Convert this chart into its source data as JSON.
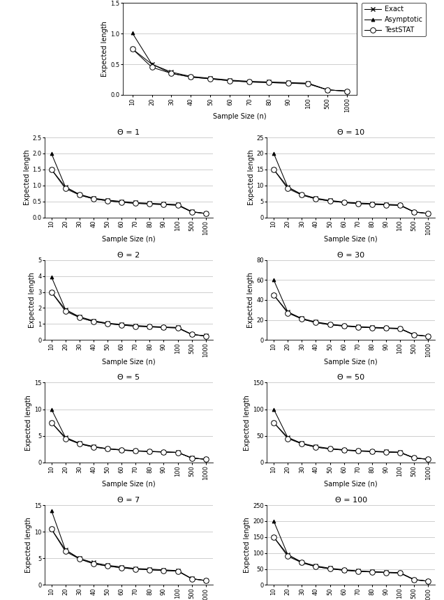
{
  "sample_sizes": [
    10,
    20,
    30,
    40,
    50,
    60,
    70,
    80,
    90,
    100,
    500,
    1000
  ],
  "x_tick_labels": [
    "10",
    "20",
    "30",
    "40",
    "50",
    "60",
    "70",
    "80",
    "90",
    "100",
    "500",
    "1000"
  ],
  "plots": {
    "0.5": {
      "exact": [
        0.75,
        0.5,
        0.37,
        0.3,
        0.27,
        0.24,
        0.22,
        0.21,
        0.2,
        0.19,
        0.08,
        0.06
      ],
      "asymptotic": [
        1.01,
        0.5,
        0.35,
        0.29,
        0.26,
        0.23,
        0.21,
        0.2,
        0.19,
        0.18,
        0.08,
        0.06
      ],
      "teststat": [
        0.75,
        0.45,
        0.35,
        0.29,
        0.26,
        0.23,
        0.21,
        0.2,
        0.19,
        0.18,
        0.08,
        0.06
      ],
      "ylim": [
        0,
        1.5
      ],
      "yticks": [
        0,
        0.5,
        1.0,
        1.5
      ]
    },
    "1": {
      "exact": [
        1.5,
        0.95,
        0.72,
        0.6,
        0.54,
        0.5,
        0.46,
        0.44,
        0.42,
        0.4,
        0.18,
        0.12
      ],
      "asymptotic": [
        2.0,
        0.95,
        0.7,
        0.58,
        0.52,
        0.47,
        0.44,
        0.42,
        0.4,
        0.38,
        0.17,
        0.12
      ],
      "teststat": [
        1.5,
        0.9,
        0.7,
        0.58,
        0.52,
        0.47,
        0.44,
        0.42,
        0.4,
        0.38,
        0.17,
        0.12
      ],
      "ylim": [
        0,
        2.5
      ],
      "yticks": [
        0,
        0.5,
        1.0,
        1.5,
        2.0,
        2.5
      ]
    },
    "2": {
      "exact": [
        3.0,
        1.9,
        1.45,
        1.2,
        1.05,
        0.97,
        0.9,
        0.85,
        0.81,
        0.78,
        0.35,
        0.25
      ],
      "asymptotic": [
        3.95,
        1.9,
        1.4,
        1.15,
        1.02,
        0.93,
        0.86,
        0.82,
        0.78,
        0.75,
        0.34,
        0.24
      ],
      "teststat": [
        3.0,
        1.8,
        1.4,
        1.15,
        1.02,
        0.93,
        0.86,
        0.82,
        0.78,
        0.75,
        0.34,
        0.24
      ],
      "ylim": [
        0,
        5
      ],
      "yticks": [
        0,
        1,
        2,
        3,
        4,
        5
      ]
    },
    "5": {
      "exact": [
        7.5,
        4.7,
        3.6,
        3.0,
        2.6,
        2.4,
        2.2,
        2.1,
        2.0,
        1.9,
        0.85,
        0.6
      ],
      "asymptotic": [
        10.0,
        4.7,
        3.5,
        2.9,
        2.55,
        2.32,
        2.15,
        2.05,
        1.95,
        1.87,
        0.83,
        0.59
      ],
      "teststat": [
        7.5,
        4.5,
        3.5,
        2.9,
        2.55,
        2.32,
        2.15,
        2.05,
        1.95,
        1.87,
        0.83,
        0.59
      ],
      "ylim": [
        0,
        15
      ],
      "yticks": [
        0,
        5,
        10,
        15
      ]
    },
    "7": {
      "exact": [
        10.5,
        6.6,
        5.0,
        4.2,
        3.7,
        3.4,
        3.1,
        3.0,
        2.85,
        2.7,
        1.2,
        0.84
      ],
      "asymptotic": [
        14.0,
        6.6,
        4.9,
        4.0,
        3.56,
        3.24,
        3.0,
        2.86,
        2.72,
        2.62,
        1.17,
        0.83
      ],
      "teststat": [
        10.5,
        6.3,
        4.9,
        4.0,
        3.56,
        3.24,
        3.0,
        2.86,
        2.72,
        2.62,
        1.17,
        0.83
      ],
      "ylim": [
        0,
        15
      ],
      "yticks": [
        0,
        5,
        10,
        15
      ]
    },
    "10": {
      "exact": [
        15.0,
        9.5,
        7.2,
        6.0,
        5.3,
        4.8,
        4.5,
        4.3,
        4.1,
        3.9,
        1.75,
        1.23
      ],
      "asymptotic": [
        20.0,
        9.5,
        7.0,
        5.8,
        5.1,
        4.65,
        4.3,
        4.1,
        3.9,
        3.75,
        1.68,
        1.19
      ],
      "teststat": [
        15.0,
        9.0,
        7.0,
        5.8,
        5.1,
        4.65,
        4.3,
        4.1,
        3.9,
        3.75,
        1.68,
        1.19
      ],
      "ylim": [
        0,
        25
      ],
      "yticks": [
        0,
        5,
        10,
        15,
        20,
        25
      ]
    },
    "30": {
      "exact": [
        45.0,
        28.0,
        21.5,
        18.0,
        15.8,
        14.4,
        13.3,
        12.7,
        12.1,
        11.6,
        5.2,
        3.7
      ],
      "asymptotic": [
        60.0,
        28.0,
        21.0,
        17.3,
        15.2,
        13.9,
        12.9,
        12.2,
        11.7,
        11.2,
        5.0,
        3.6
      ],
      "teststat": [
        45.0,
        27.0,
        21.0,
        17.3,
        15.2,
        13.9,
        12.9,
        12.2,
        11.7,
        11.2,
        5.0,
        3.6
      ],
      "ylim": [
        0,
        80
      ],
      "yticks": [
        0,
        20,
        40,
        60,
        80
      ]
    },
    "50": {
      "exact": [
        75.0,
        47.0,
        36.0,
        30.0,
        26.3,
        24.0,
        22.2,
        21.2,
        20.2,
        19.4,
        8.7,
        6.1
      ],
      "asymptotic": [
        100.0,
        47.0,
        35.0,
        28.8,
        25.4,
        23.2,
        21.5,
        20.5,
        19.5,
        18.7,
        8.4,
        5.9
      ],
      "teststat": [
        75.0,
        45.0,
        35.0,
        28.8,
        25.4,
        23.2,
        21.5,
        20.5,
        19.5,
        18.7,
        8.4,
        5.9
      ],
      "ylim": [
        0,
        150
      ],
      "yticks": [
        0,
        50,
        100,
        150
      ]
    },
    "100": {
      "exact": [
        150.0,
        95.0,
        72.0,
        60.0,
        52.5,
        48.0,
        44.2,
        42.2,
        40.2,
        38.6,
        17.3,
        12.2
      ],
      "asymptotic": [
        200.0,
        95.0,
        70.0,
        57.5,
        50.7,
        46.3,
        42.9,
        40.9,
        39.0,
        37.4,
        16.7,
        11.8
      ],
      "teststat": [
        150.0,
        90.0,
        70.0,
        57.5,
        50.7,
        46.3,
        42.9,
        40.9,
        39.0,
        37.4,
        16.7,
        11.8
      ],
      "ylim": [
        0,
        250
      ],
      "yticks": [
        0,
        50,
        100,
        150,
        200,
        250
      ]
    }
  },
  "line_color": "#000000",
  "xlabel": "Sample Size (n)",
  "ylabel": "Expected length",
  "legend_labels": [
    "Exact",
    "Asymptotic",
    "TestSTAT"
  ],
  "title_fontsize": 8,
  "label_fontsize": 7,
  "tick_fontsize": 6,
  "legend_fontsize": 7
}
